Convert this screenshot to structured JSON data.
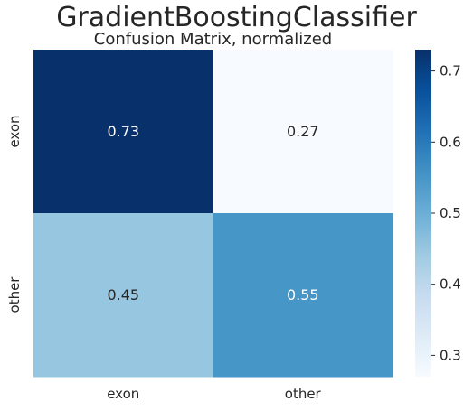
{
  "figure_title": "GradientBoostingClassifier",
  "chart_data": {
    "type": "heatmap",
    "title": "Confusion Matrix, normalized",
    "xlabel": "",
    "ylabel": "",
    "x_categories": [
      "exon",
      "other"
    ],
    "y_categories": [
      "exon",
      "other"
    ],
    "values": [
      [
        0.73,
        0.27
      ],
      [
        0.45,
        0.55
      ]
    ],
    "annotations": [
      [
        "0.73",
        "0.27"
      ],
      [
        "0.45",
        "0.55"
      ]
    ],
    "colormap": "Blues",
    "colorbar": {
      "range": [
        0.27,
        0.73
      ],
      "ticks": [
        0.3,
        0.4,
        0.5,
        0.6,
        0.7
      ],
      "tick_labels": [
        "0.3",
        "0.4",
        "0.5",
        "0.6",
        "0.7"
      ]
    },
    "grid": false,
    "legend": "colorbar-right"
  }
}
